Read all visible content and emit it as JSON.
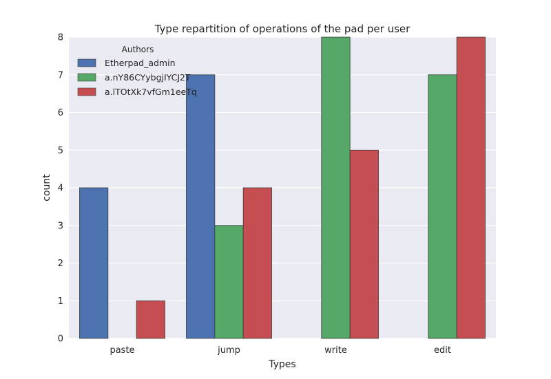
{
  "chart_data": {
    "type": "bar",
    "title": "Type repartition of operations of the pad per user",
    "xlabel": "Types",
    "ylabel": "count",
    "categories": [
      "paste",
      "jump",
      "write",
      "edit"
    ],
    "ylim": [
      0,
      8
    ],
    "yticks": [
      0,
      1,
      2,
      3,
      4,
      5,
      6,
      7,
      8
    ],
    "grid": true,
    "legend": {
      "title": "Authors",
      "placement": "top-left"
    },
    "series": [
      {
        "name": "Etherpad_admin",
        "color": "#4c72b0",
        "values": [
          4,
          7,
          0,
          0
        ]
      },
      {
        "name": "a.nY86CYybgjIYCJ2T",
        "color": "#55a868",
        "values": [
          0,
          3,
          8,
          7
        ]
      },
      {
        "name": "a.lTOtXk7vfGm1eeTq",
        "color": "#c44e52",
        "values": [
          1,
          4,
          5,
          8
        ]
      }
    ]
  },
  "style": {
    "plot_background": "#eaeaf2",
    "grid_color": "#ffffff",
    "bar_edge_color": "#3a3a3a"
  }
}
